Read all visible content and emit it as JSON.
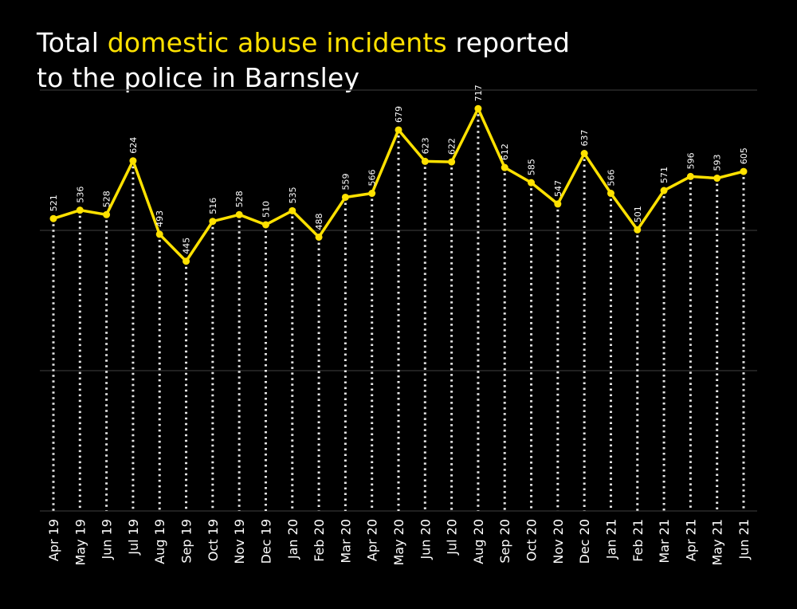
{
  "chart_data": {
    "type": "line",
    "title_parts": [
      "Total ",
      "domestic abuse incidents",
      " reported",
      "to the police in Barnsley"
    ],
    "categories": [
      "Apr 19",
      "May 19",
      "Jun 19",
      "Jul 19",
      "Aug 19",
      "Sep 19",
      "Oct 19",
      "Nov 19",
      "Dec 19",
      "Jan 20",
      "Feb 20",
      "Mar 20",
      "Apr 20",
      "May 20",
      "Jun 20",
      "Jul 20",
      "Aug 20",
      "Sep 20",
      "Oct 20",
      "Nov 20",
      "Dec 20",
      "Jan 21",
      "Feb 21",
      "Mar 21",
      "Apr 21",
      "May 21",
      "Jun 21"
    ],
    "values": [
      521,
      536,
      528,
      624,
      493,
      445,
      516,
      528,
      510,
      535,
      488,
      559,
      566,
      679,
      623,
      622,
      717,
      612,
      585,
      547,
      637,
      566,
      501,
      571,
      596,
      593,
      605
    ],
    "ylim": [
      0,
      750
    ],
    "gridlines": [
      0,
      250,
      500,
      750
    ],
    "xlabel": "",
    "ylabel": "",
    "colors": {
      "line": "#FFE100",
      "background": "#000000",
      "text": "#FFFFFF",
      "grid": "#2a2a2a"
    }
  }
}
